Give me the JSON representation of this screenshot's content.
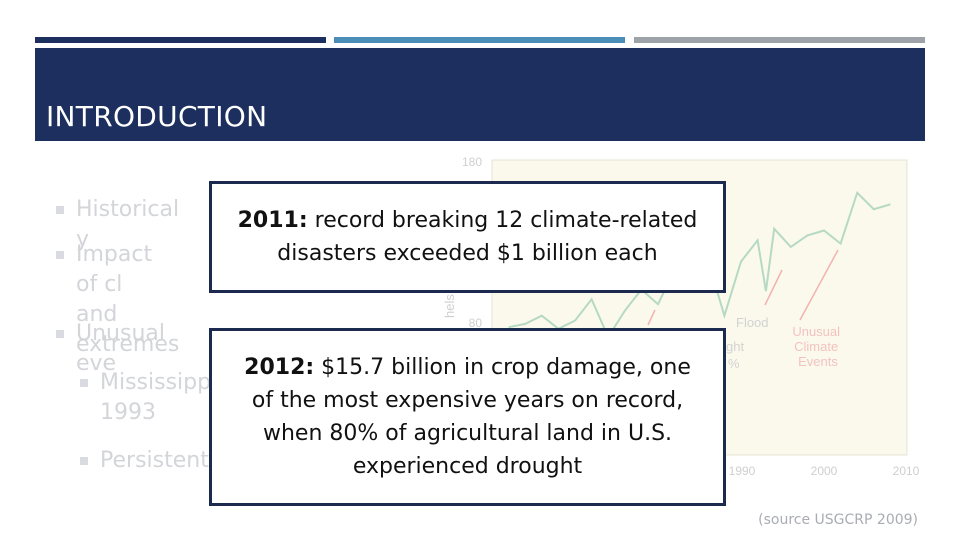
{
  "slide": {
    "title": "INTRODUCTION",
    "colors": {
      "title_bar": "#1c2f5e",
      "stripe_1": "#1c2f5e",
      "stripe_2": "#4a8db8",
      "stripe_3": "#9ea3aa",
      "callout_border": "#1c2a4f"
    }
  },
  "bullets": [
    {
      "text": "Historical y"
    },
    {
      "text": "Impact of cl\nand extremes"
    },
    {
      "text": "Unusual eve"
    },
    {
      "text": "Mississipp\n1993"
    },
    {
      "text": "Persistent"
    }
  ],
  "callouts": [
    {
      "bold": "2011:",
      "text": " record breaking 12 climate-related disasters exceeded $1 billion each"
    },
    {
      "bold": "2012:",
      "text": " $15.7 billion in crop damage, one of the most expensive years on record, when 80% of agricultural land in U.S. experienced drought"
    }
  ],
  "chart_data": {
    "type": "line",
    "y_ticks": [
      "180",
      "80"
    ],
    "x_ticks": [
      "1990",
      "2000",
      "2010"
    ],
    "ylabel_fragment": "hels",
    "annotations": [
      "Flood",
      "Unusual\nClimate\nEvents",
      "ght",
      "%"
    ],
    "series": [
      {
        "x": [
          1962,
          1964,
          1966,
          1968,
          1970,
          1972,
          1974,
          1976,
          1978,
          1980,
          1982,
          1984,
          1986,
          1988,
          1990,
          1992,
          1993,
          1994,
          1996,
          1998,
          2000,
          2002,
          2004,
          2006,
          2008
        ],
        "y": [
          78,
          80,
          85,
          77,
          82,
          95,
          72,
          88,
          101,
          92,
          113,
          108,
          119,
          85,
          118,
          131,
          100,
          138,
          127,
          134,
          137,
          129,
          160,
          150,
          153
        ]
      }
    ],
    "xlim": [
      1960,
      2010
    ],
    "ylim": [
      0,
      180
    ]
  },
  "source": "(source USGCRP 2009)"
}
